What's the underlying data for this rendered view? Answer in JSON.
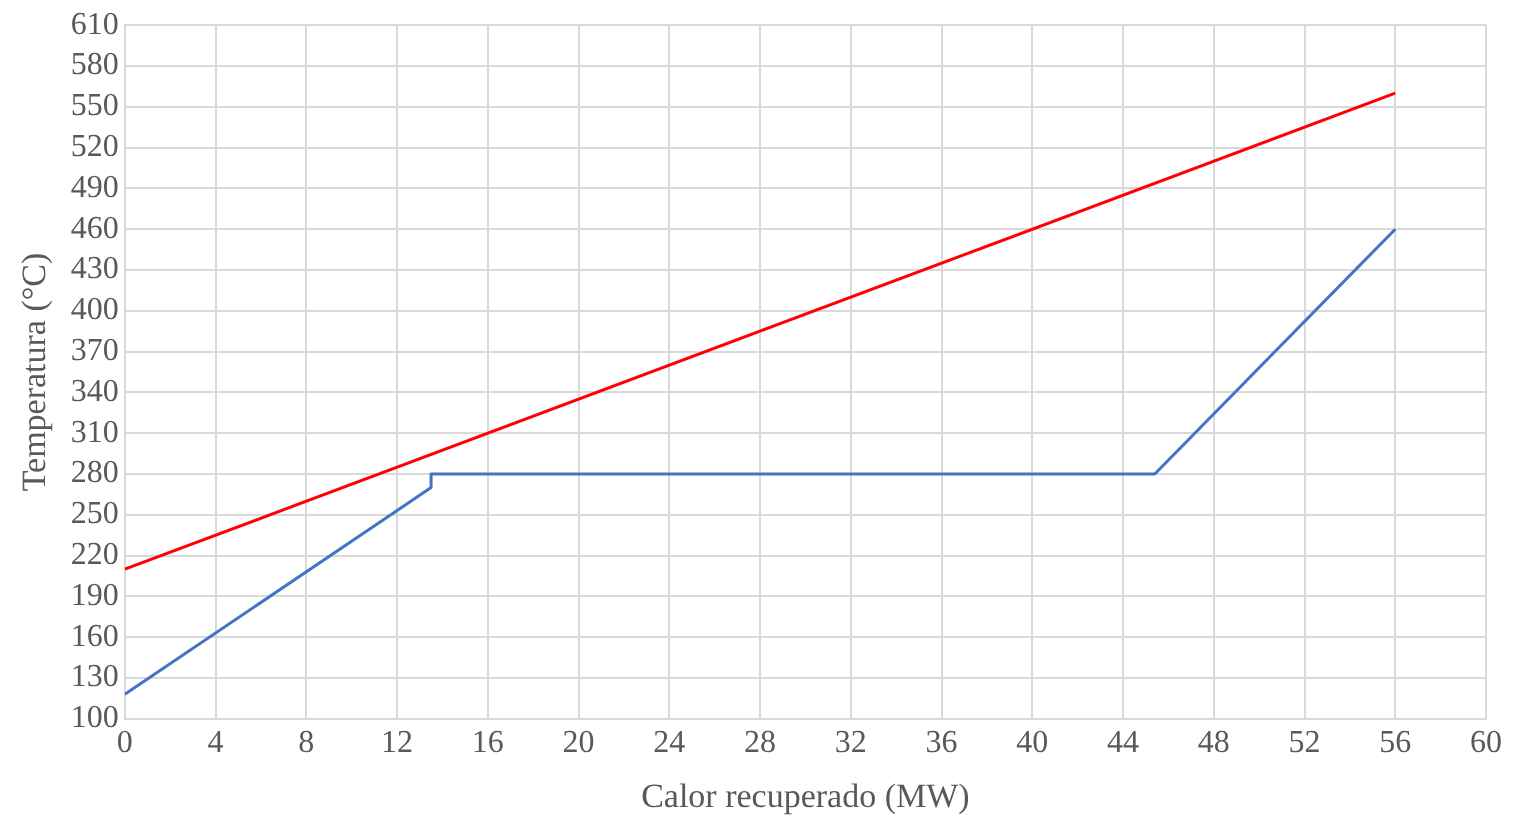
{
  "chart_data": {
    "type": "line",
    "xlabel": "Calor recuperado (MW)",
    "ylabel": "Temperatura (°C)",
    "series": [
      {
        "color": "#ff0000",
        "x": [
          0,
          56
        ],
        "values": [
          210,
          560
        ]
      },
      {
        "color": "#4472c4",
        "x": [
          0,
          13.5,
          13.5,
          45.4,
          56
        ],
        "values": [
          118,
          270,
          280,
          280,
          460
        ]
      }
    ],
    "xlim": [
      0,
      60
    ],
    "xticks": [
      0,
      4,
      8,
      12,
      16,
      20,
      24,
      28,
      32,
      36,
      40,
      44,
      48,
      52,
      56,
      60
    ],
    "ylim": [
      100,
      610
    ],
    "yticks": [
      100,
      130,
      160,
      190,
      220,
      250,
      280,
      310,
      340,
      370,
      400,
      430,
      460,
      490,
      520,
      550,
      580,
      610
    ],
    "grid": true,
    "legend": false,
    "marker": "none",
    "line_style": "solid"
  }
}
